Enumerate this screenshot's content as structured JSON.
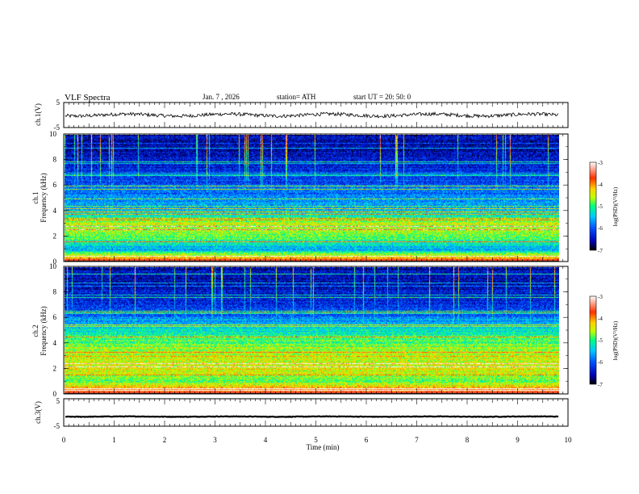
{
  "header": {
    "title": "VLF  Spectra",
    "date": "Jan.  7  , 2026",
    "station": "station= ATH",
    "start": "start  UT  =    20: 50: 0"
  },
  "chart_data": [
    {
      "type": "line",
      "name": "ch1-waveform",
      "ylabel": "ch.1(V)",
      "ylim": [
        -5,
        5
      ],
      "yticks": [
        "5",
        "-5"
      ],
      "baseline": 0,
      "noise_amplitude": 1.0
    },
    {
      "type": "heatmap",
      "name": "ch1-spectrogram",
      "ylabel_top": "ch.1",
      "ylabel": "Frequency  (kHz)",
      "ylim": [
        0,
        10
      ],
      "yticks": [
        "0",
        "2",
        "4",
        "6",
        "8",
        "10"
      ],
      "colorbar": {
        "label": "log(PSD)(V²/Hz)",
        "range": [
          -7,
          -3
        ],
        "ticks": [
          "-3",
          "-4",
          "-5",
          "-6",
          "-7"
        ],
        "colors": [
          "#000000",
          "#0000b0",
          "#0050ff",
          "#00c8ff",
          "#00ff80",
          "#c0ff00",
          "#ffd000",
          "#ff3000",
          "#ffffff"
        ]
      },
      "band_levels": [
        0.9,
        0.35,
        0.55,
        0.6,
        0.4,
        0.3,
        0.25,
        0.2,
        0.15,
        0.12
      ]
    },
    {
      "type": "heatmap",
      "name": "ch2-spectrogram",
      "ylabel_top": "ch.2",
      "ylabel": "Frequency  (kHz)",
      "ylim": [
        0,
        10
      ],
      "yticks": [
        "0",
        "2",
        "4",
        "6",
        "8",
        "10"
      ],
      "colorbar": {
        "label": "log(PSD)(V²/Hz)",
        "range": [
          -7,
          -3
        ],
        "ticks": [
          "-3",
          "-4",
          "-5",
          "-6",
          "-7"
        ],
        "colors": [
          "#000000",
          "#0000b0",
          "#0050ff",
          "#00c8ff",
          "#00ff80",
          "#c0ff00",
          "#ffd000",
          "#ff3000",
          "#ffffff"
        ]
      },
      "band_levels": [
        0.9,
        0.55,
        0.65,
        0.6,
        0.55,
        0.45,
        0.3,
        0.2,
        0.15,
        0.12
      ]
    },
    {
      "type": "line",
      "name": "ch3-waveform",
      "ylabel": "ch.3(V)",
      "ylim": [
        -5,
        5
      ],
      "yticks": [
        "5",
        "-5"
      ],
      "baseline": -1.5,
      "noise_amplitude": 0.15
    }
  ],
  "xaxis": {
    "label": "Time  (min)",
    "xlim": [
      0,
      10
    ],
    "ticks": [
      "0",
      "1",
      "2",
      "3",
      "4",
      "5",
      "6",
      "7",
      "8",
      "9",
      "10"
    ],
    "data_end": 9.82
  }
}
